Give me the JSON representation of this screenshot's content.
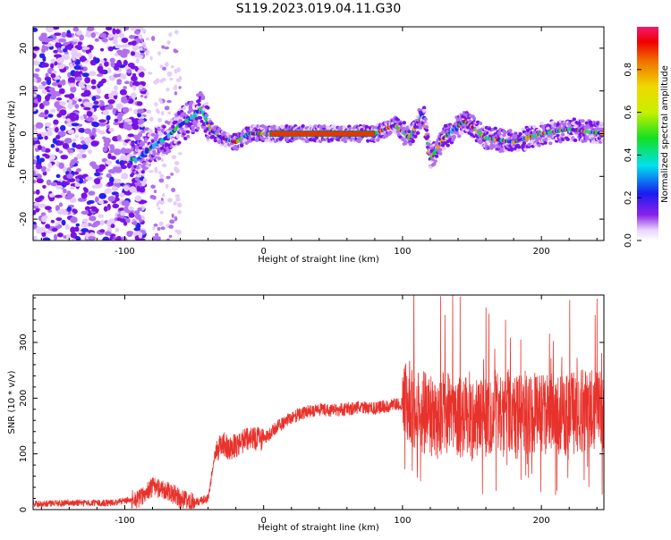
{
  "title": "S119.2023.019.04.11.G30",
  "chart_data": [
    {
      "type": "heatmap",
      "xlabel": "Height of straight line (km)",
      "ylabel": "Frequency (Hz)",
      "xlim": [
        -166,
        245
      ],
      "ylim": [
        -25,
        25
      ],
      "xticks": [
        -100,
        0,
        100,
        200
      ],
      "yticks": [
        -20,
        -10,
        0,
        10,
        20
      ],
      "colorbar": {
        "label": "Normalized spectral amplitude",
        "range": [
          0,
          1
        ],
        "ticks": [
          "0.0",
          "0.2",
          "0.4",
          "0.6",
          "0.8"
        ]
      },
      "ridge": [
        {
          "x": -90,
          "y": -6
        },
        {
          "x": -80,
          "y": -3
        },
        {
          "x": -70,
          "y": -1
        },
        {
          "x": -60,
          "y": 2
        },
        {
          "x": -50,
          "y": 4
        },
        {
          "x": -45,
          "y": 6
        },
        {
          "x": -38,
          "y": 1
        },
        {
          "x": -30,
          "y": -1
        },
        {
          "x": -20,
          "y": -2
        },
        {
          "x": -10,
          "y": 0
        },
        {
          "x": 0,
          "y": 0
        },
        {
          "x": 80,
          "y": 0
        },
        {
          "x": 95,
          "y": 2
        },
        {
          "x": 105,
          "y": -1
        },
        {
          "x": 115,
          "y": 5
        },
        {
          "x": 120,
          "y": -6
        },
        {
          "x": 130,
          "y": -1
        },
        {
          "x": 145,
          "y": 3
        },
        {
          "x": 160,
          "y": -1
        },
        {
          "x": 180,
          "y": -2
        },
        {
          "x": 200,
          "y": 0
        },
        {
          "x": 220,
          "y": 1
        },
        {
          "x": 245,
          "y": 0
        }
      ]
    },
    {
      "type": "line",
      "xlabel": "Height of straight line (km)",
      "ylabel": "SNR (10 * v/v)",
      "xlim": [
        -166,
        245
      ],
      "ylim": [
        0,
        385
      ],
      "xticks": [
        -100,
        0,
        100,
        200
      ],
      "yticks": [
        0,
        100,
        200,
        300
      ],
      "series": [
        {
          "color": "#e8322c",
          "x": [
            -166,
            -140,
            -110,
            -90,
            -80,
            -70,
            -60,
            -50,
            -40,
            -35,
            -30,
            -25,
            -20,
            -10,
            0,
            10,
            20,
            30,
            40,
            50,
            60,
            70,
            80,
            90,
            100,
            105,
            110,
            120,
            130,
            140,
            150,
            160,
            170,
            180,
            190,
            200,
            210,
            220,
            230,
            245
          ],
          "y": [
            10,
            12,
            12,
            20,
            40,
            35,
            20,
            12,
            20,
            100,
            120,
            110,
            115,
            130,
            125,
            150,
            165,
            175,
            180,
            178,
            180,
            183,
            182,
            186,
            190,
            195,
            180,
            170,
            175,
            170,
            160,
            170,
            180,
            178,
            175,
            168,
            172,
            170,
            178,
            175
          ]
        }
      ]
    }
  ]
}
